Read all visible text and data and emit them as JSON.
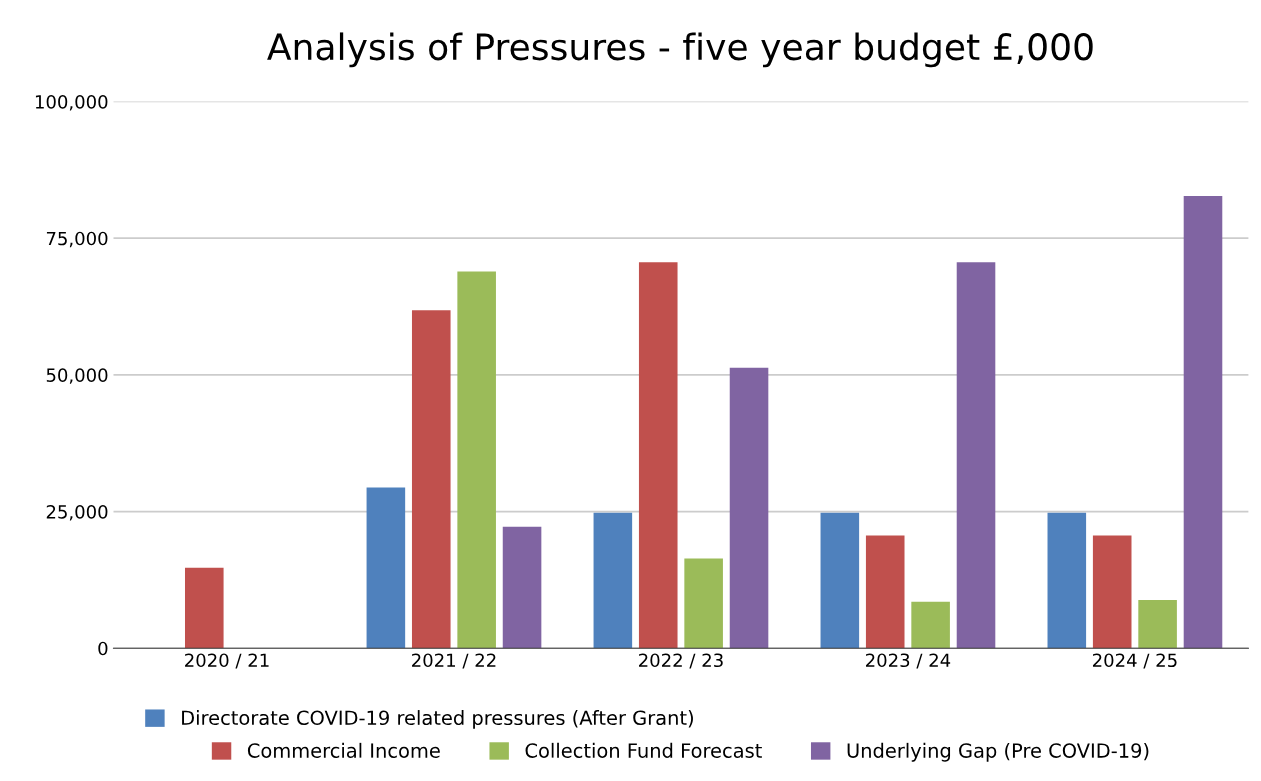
{
  "chart_data": {
    "type": "bar",
    "title": "Analysis of Pressures - five year budget £,000",
    "categories": [
      "2020 / 21",
      "2021 / 22",
      "2022 / 23",
      "2023 / 24",
      "2024 / 25"
    ],
    "series": [
      {
        "name": "Directorate COVID-19 related pressures (After Grant)",
        "color": "#4f81bd",
        "values": [
          0,
          29400,
          24800,
          24800,
          24800
        ]
      },
      {
        "name": "Commercial Income",
        "color": "#c0504d",
        "values": [
          14700,
          61800,
          70600,
          20600,
          20600
        ]
      },
      {
        "name": "Collection Fund Forecast",
        "color": "#9bbb59",
        "values": [
          0,
          68900,
          16400,
          8500,
          8800
        ]
      },
      {
        "name": "Underlying Gap (Pre COVID-19)",
        "color": "#8064a2",
        "values": [
          0,
          22200,
          51300,
          70600,
          82700
        ]
      }
    ],
    "ylim": [
      0,
      100000
    ],
    "yticks": [
      {
        "value": 0,
        "label": "0"
      },
      {
        "value": 25000,
        "label": "25,000"
      },
      {
        "value": 50000,
        "label": "50,000"
      },
      {
        "value": 75000,
        "label": "75,000"
      },
      {
        "value": 100000,
        "label": "100,000"
      }
    ],
    "grid": "y",
    "legend": "bottom"
  }
}
